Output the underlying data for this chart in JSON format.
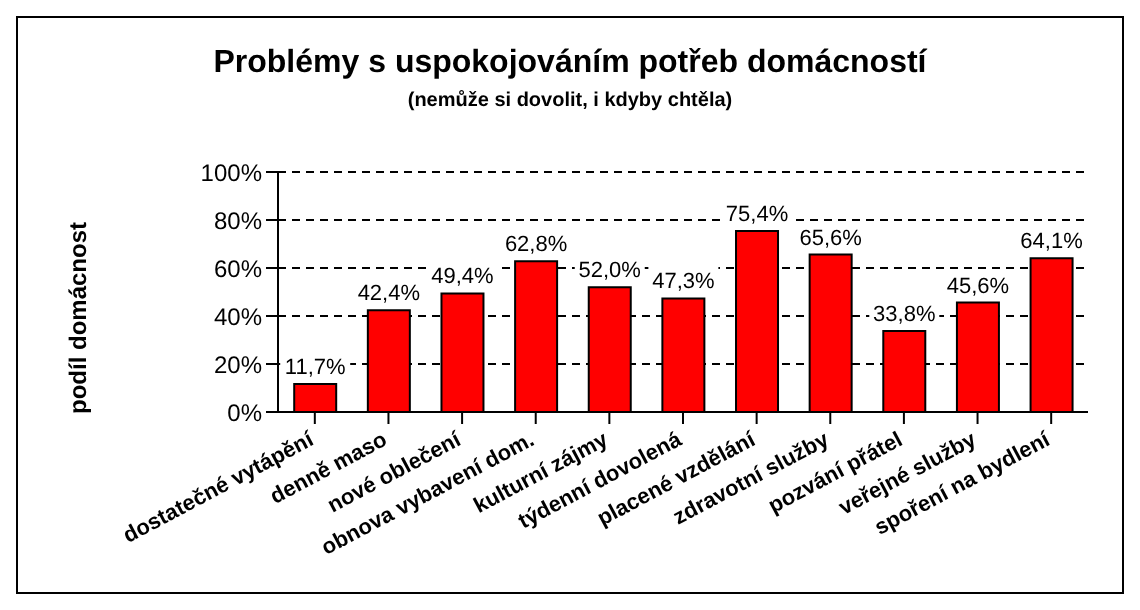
{
  "chart_data": {
    "type": "bar",
    "title": "Problémy s uspokojováním potřeb domácností",
    "subtitle": "(nemůže si dovolit, i kdyby chtěla)",
    "ylabel": "podíl domácnost",
    "categories": [
      "dostatečné vytápění",
      "denně maso",
      "nové oblečení",
      "obnova vybavení dom.",
      "kulturní zájmy",
      "týdenní dovolená",
      "placené vzdělání",
      "zdravotní služby",
      "pozvání přátel",
      "veřejné služby",
      "spoření na bydlení"
    ],
    "values": [
      11.7,
      42.4,
      49.4,
      62.8,
      52.0,
      47.3,
      75.4,
      65.6,
      33.8,
      45.6,
      64.1
    ],
    "value_labels": [
      "11,7%",
      "42,4%",
      "49,4%",
      "62,8%",
      "52,0%",
      "47,3%",
      "75,4%",
      "65,6%",
      "33,8%",
      "45,6%",
      "64,1%"
    ],
    "color": "#ff0000",
    "ylim": [
      0,
      100
    ],
    "yticks": [
      {
        "value": 0,
        "label": "0%"
      },
      {
        "value": 20,
        "label": "20%"
      },
      {
        "value": 40,
        "label": "40%"
      },
      {
        "value": 60,
        "label": "60%"
      },
      {
        "value": 80,
        "label": "80%"
      },
      {
        "value": 100,
        "label": "100%"
      }
    ],
    "grid": "y"
  }
}
